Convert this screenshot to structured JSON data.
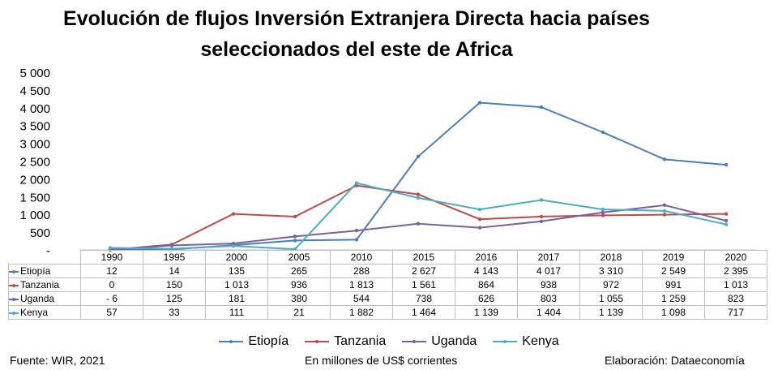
{
  "chart_data": {
    "type": "line",
    "title_line1": "Evolución de flujos Inversión Extranjera Directa hacia países",
    "title_line2": "seleccionados del este de Africa",
    "categories": [
      "1990",
      "1995",
      "2000",
      "2005",
      "2010",
      "2015",
      "2016",
      "2017",
      "2018",
      "2019",
      "2020"
    ],
    "ylim": [
      0,
      5000
    ],
    "yticks": [
      "5 000",
      "4 500",
      "4 000",
      "3 500",
      "3 000",
      "2 500",
      "2 000",
      "1 500",
      "1 000",
      "500",
      "-"
    ],
    "grid": false,
    "legend_position": "bottom",
    "series": [
      {
        "name": "Etiopía",
        "color": "#4a7ebb",
        "values": [
          12,
          14,
          135,
          265,
          288,
          2627,
          4143,
          4017,
          3310,
          2549,
          2395
        ],
        "labels": [
          "12",
          "14",
          "135",
          "265",
          "288",
          "2 627",
          "4 143",
          "4 017",
          "3 310",
          "2 549",
          "2 395"
        ]
      },
      {
        "name": "Tanzania",
        "color": "#be4b48",
        "values": [
          0,
          150,
          1013,
          936,
          1813,
          1561,
          864,
          938,
          972,
          991,
          1013
        ],
        "labels": [
          "0",
          "150",
          "1 013",
          "936",
          "1 813",
          "1 561",
          "864",
          "938",
          "972",
          "991",
          "1 013"
        ]
      },
      {
        "name": "Uganda",
        "color": "#7d5fa0",
        "values": [
          -6,
          125,
          181,
          380,
          544,
          738,
          626,
          803,
          1055,
          1259,
          823
        ],
        "labels": [
          "-  6",
          "125",
          "181",
          "380",
          "544",
          "738",
          "626",
          "803",
          "1 055",
          "1 259",
          "823"
        ]
      },
      {
        "name": "Kenya",
        "color": "#4bacc6",
        "values": [
          57,
          33,
          111,
          21,
          1882,
          1464,
          1139,
          1404,
          1139,
          1098,
          717
        ],
        "labels": [
          "57",
          "33",
          "111",
          "21",
          "1 882",
          "1 464",
          "1 139",
          "1 404",
          "1 139",
          "1 098",
          "717"
        ]
      }
    ]
  },
  "footer": {
    "source": "Fuente: WIR, 2021",
    "units": "En millones de US$ corrientes",
    "credit": "Elaboración: Dataeconomía"
  }
}
